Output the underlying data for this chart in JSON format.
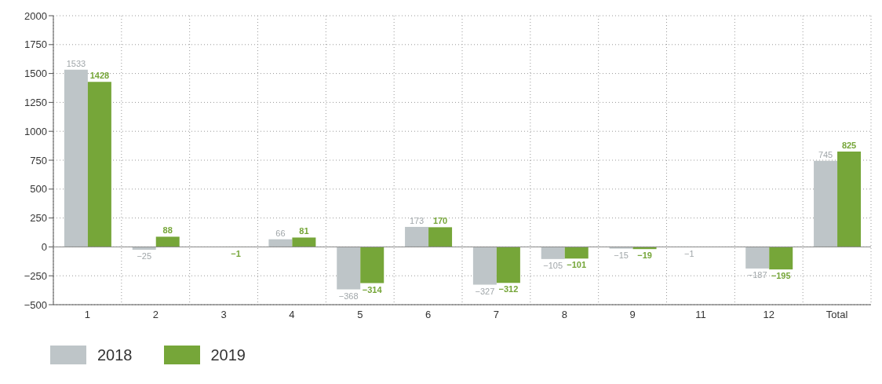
{
  "chart_data": {
    "type": "bar",
    "categories": [
      "1",
      "2",
      "3",
      "4",
      "5",
      "6",
      "7",
      "8",
      "9",
      "11",
      "12",
      "Total"
    ],
    "series": [
      {
        "name": "2018",
        "color": "#bec5c8",
        "values": [
          1533,
          -25,
          null,
          66,
          -368,
          173,
          -327,
          -105,
          -15,
          -1,
          -187,
          745
        ],
        "value_labels": [
          "1533",
          "−25",
          null,
          "66",
          "−368",
          "173",
          "−327",
          "−105",
          "−15",
          "−1",
          "−187",
          "745"
        ]
      },
      {
        "name": "2019",
        "color": "#76a639",
        "values": [
          1428,
          88,
          -1,
          81,
          -314,
          170,
          -312,
          -101,
          -19,
          null,
          -195,
          825
        ],
        "value_labels": [
          "1428",
          "88",
          "−1",
          "81",
          "−314",
          "170",
          "−312",
          "−101",
          "−19",
          null,
          "−195",
          "825"
        ]
      }
    ],
    "ylim": [
      -500,
      2000
    ],
    "yticks": [
      {
        "value": -500,
        "label": "−500"
      },
      {
        "value": -250,
        "label": "−250"
      },
      0,
      250,
      500,
      750,
      1000,
      1250,
      1500,
      1750,
      2000
    ],
    "grid": true,
    "legend": "bottom left"
  }
}
